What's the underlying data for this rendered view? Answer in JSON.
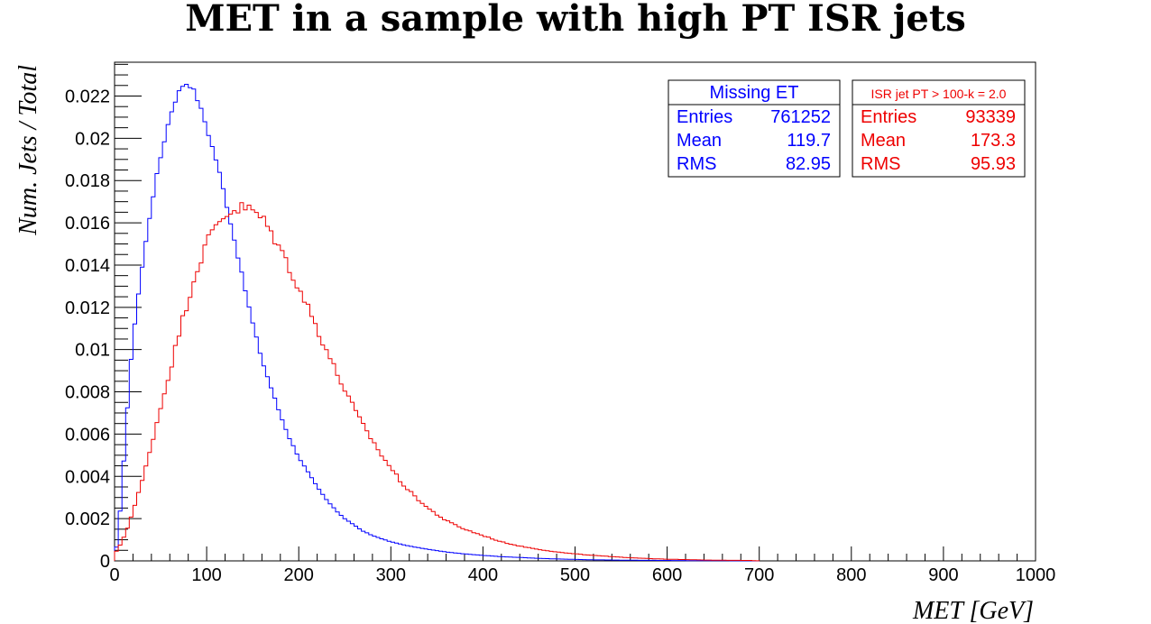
{
  "chart_data": {
    "type": "histogram",
    "title": "MET in a sample with high PT ISR jets",
    "xlabel": "MET [GeV]",
    "ylabel": "Num. Jets / Total",
    "xlim": [
      0,
      1000
    ],
    "ylim": [
      0,
      0.0236
    ],
    "x_ticks": [
      "0",
      "100",
      "200",
      "300",
      "400",
      "500",
      "600",
      "700",
      "800",
      "900",
      "1000"
    ],
    "y_ticks": [
      "0",
      "0.002",
      "0.004",
      "0.006",
      "0.008",
      "0.01",
      "0.012",
      "0.014",
      "0.016",
      "0.018",
      "0.02",
      "0.022"
    ],
    "grid": false,
    "bin_width": 4,
    "series": [
      {
        "name": "Missing ET",
        "color": "#0000ff",
        "stats": {
          "entries": "761252",
          "mean": "119.7",
          "rms": "82.95"
        },
        "curve_points": [
          [
            0,
            0.0001
          ],
          [
            4,
            0.0012
          ],
          [
            8,
            0.0035
          ],
          [
            12,
            0.006
          ],
          [
            16,
            0.0085
          ],
          [
            20,
            0.0105
          ],
          [
            24,
            0.012
          ],
          [
            28,
            0.0133
          ],
          [
            32,
            0.0145
          ],
          [
            36,
            0.0157
          ],
          [
            40,
            0.0168
          ],
          [
            44,
            0.0178
          ],
          [
            48,
            0.0187
          ],
          [
            52,
            0.0195
          ],
          [
            56,
            0.0203
          ],
          [
            60,
            0.021
          ],
          [
            64,
            0.0216
          ],
          [
            68,
            0.022
          ],
          [
            72,
            0.0224
          ],
          [
            76,
            0.0226
          ],
          [
            80,
            0.0226
          ],
          [
            84,
            0.0224
          ],
          [
            88,
            0.0221
          ],
          [
            92,
            0.0216
          ],
          [
            96,
            0.0211
          ],
          [
            100,
            0.0205
          ],
          [
            104,
            0.0199
          ],
          [
            108,
            0.0193
          ],
          [
            112,
            0.0187
          ],
          [
            116,
            0.018
          ],
          [
            120,
            0.0172
          ],
          [
            124,
            0.0164
          ],
          [
            128,
            0.0156
          ],
          [
            132,
            0.0148
          ],
          [
            136,
            0.014
          ],
          [
            140,
            0.0132
          ],
          [
            144,
            0.0124
          ],
          [
            148,
            0.0116
          ],
          [
            152,
            0.0109
          ],
          [
            156,
            0.0102
          ],
          [
            160,
            0.0095
          ],
          [
            170,
            0.0082
          ],
          [
            180,
            0.0069
          ],
          [
            190,
            0.0058
          ],
          [
            200,
            0.0049
          ],
          [
            210,
            0.0042
          ],
          [
            220,
            0.0035
          ],
          [
            230,
            0.0029
          ],
          [
            240,
            0.0024
          ],
          [
            250,
            0.002
          ],
          [
            260,
            0.0017
          ],
          [
            270,
            0.0014
          ],
          [
            280,
            0.0012
          ],
          [
            300,
            0.0009
          ],
          [
            320,
            0.0007
          ],
          [
            340,
            0.00055
          ],
          [
            360,
            0.00042
          ],
          [
            380,
            0.00033
          ],
          [
            400,
            0.00026
          ],
          [
            420,
            0.0002
          ],
          [
            440,
            0.00016
          ],
          [
            460,
            0.00012
          ],
          [
            480,
            9e-05
          ],
          [
            500,
            7e-05
          ],
          [
            520,
            5e-05
          ],
          [
            540,
            4e-05
          ],
          [
            560,
            3e-05
          ],
          [
            580,
            2.5e-05
          ],
          [
            600,
            2e-05
          ],
          [
            640,
            1e-05
          ],
          [
            680,
            5e-06
          ],
          [
            700,
            0
          ]
        ]
      },
      {
        "name": "ISR jet PT > 100-k = 2.0",
        "color": "#ee0000",
        "stats": {
          "entries": "93339",
          "mean": "173.3",
          "rms": "95.93"
        },
        "curve_points": [
          [
            0,
            0.0003
          ],
          [
            8,
            0.0009
          ],
          [
            16,
            0.0018
          ],
          [
            24,
            0.0029
          ],
          [
            32,
            0.0041
          ],
          [
            40,
            0.0055
          ],
          [
            48,
            0.0069
          ],
          [
            56,
            0.0083
          ],
          [
            64,
            0.0097
          ],
          [
            72,
            0.0111
          ],
          [
            80,
            0.0124
          ],
          [
            88,
            0.0136
          ],
          [
            96,
            0.0146
          ],
          [
            104,
            0.0154
          ],
          [
            112,
            0.016
          ],
          [
            120,
            0.0164
          ],
          [
            128,
            0.0166
          ],
          [
            136,
            0.0167
          ],
          [
            144,
            0.0167
          ],
          [
            152,
            0.0165
          ],
          [
            160,
            0.0162
          ],
          [
            168,
            0.0157
          ],
          [
            176,
            0.0151
          ],
          [
            184,
            0.0144
          ],
          [
            192,
            0.0137
          ],
          [
            200,
            0.0129
          ],
          [
            210,
            0.012
          ],
          [
            220,
            0.011
          ],
          [
            230,
            0.01
          ],
          [
            240,
            0.009
          ],
          [
            250,
            0.0081
          ],
          [
            260,
            0.0072
          ],
          [
            270,
            0.0064
          ],
          [
            280,
            0.0057
          ],
          [
            290,
            0.005
          ],
          [
            300,
            0.0044
          ],
          [
            310,
            0.0038
          ],
          [
            320,
            0.0033
          ],
          [
            330,
            0.0029
          ],
          [
            340,
            0.0025
          ],
          [
            350,
            0.0022
          ],
          [
            360,
            0.0019
          ],
          [
            380,
            0.0015
          ],
          [
            400,
            0.0012
          ],
          [
            420,
            0.0009
          ],
          [
            440,
            0.0007
          ],
          [
            460,
            0.00055
          ],
          [
            480,
            0.00042
          ],
          [
            500,
            0.00033
          ],
          [
            520,
            0.00026
          ],
          [
            540,
            0.0002
          ],
          [
            560,
            0.00015
          ],
          [
            580,
            0.00011
          ],
          [
            600,
            8e-05
          ],
          [
            620,
            6e-05
          ],
          [
            640,
            4e-05
          ],
          [
            660,
            3e-05
          ],
          [
            690,
            2e-05
          ],
          [
            700,
            0
          ]
        ]
      }
    ],
    "stats_labels": {
      "entries": "Entries",
      "mean": "Mean",
      "rms": "RMS"
    }
  }
}
